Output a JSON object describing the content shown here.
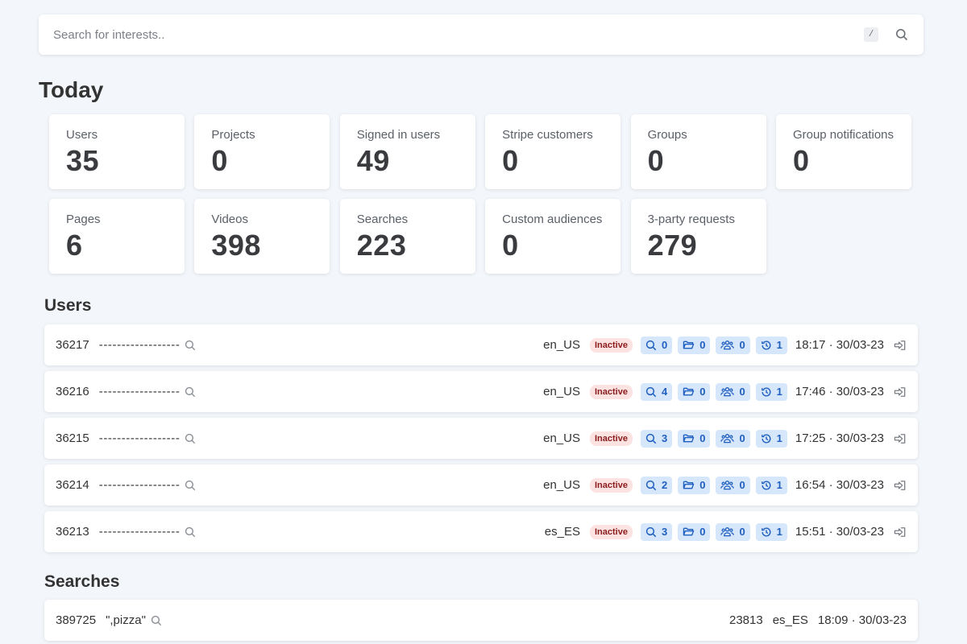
{
  "search": {
    "placeholder": "Search for interests..",
    "shortcut": "/"
  },
  "today": {
    "title": "Today",
    "stats": [
      {
        "label": "Users",
        "value": "35"
      },
      {
        "label": "Projects",
        "value": "0"
      },
      {
        "label": "Signed in users",
        "value": "49"
      },
      {
        "label": "Stripe customers",
        "value": "0"
      },
      {
        "label": "Groups",
        "value": "0"
      },
      {
        "label": "Group notifications",
        "value": "0"
      },
      {
        "label": "Pages",
        "value": "6"
      },
      {
        "label": "Videos",
        "value": "398"
      },
      {
        "label": "Searches",
        "value": "223"
      },
      {
        "label": "Custom audiences",
        "value": "0"
      },
      {
        "label": "3-party requests",
        "value": "279"
      }
    ]
  },
  "users": {
    "title": "Users",
    "rows": [
      {
        "id": "36217",
        "name": "------------------",
        "locale": "en_US",
        "status": "Inactive",
        "searches": "0",
        "projects": "0",
        "groups": "0",
        "history": "1",
        "time": "18:17 · 30/03-23"
      },
      {
        "id": "36216",
        "name": "------------------",
        "locale": "en_US",
        "status": "Inactive",
        "searches": "4",
        "projects": "0",
        "groups": "0",
        "history": "1",
        "time": "17:46 · 30/03-23"
      },
      {
        "id": "36215",
        "name": "------------------",
        "locale": "en_US",
        "status": "Inactive",
        "searches": "3",
        "projects": "0",
        "groups": "0",
        "history": "1",
        "time": "17:25 · 30/03-23"
      },
      {
        "id": "36214",
        "name": "------------------",
        "locale": "en_US",
        "status": "Inactive",
        "searches": "2",
        "projects": "0",
        "groups": "0",
        "history": "1",
        "time": "16:54 · 30/03-23"
      },
      {
        "id": "36213",
        "name": "------------------",
        "locale": "es_ES",
        "status": "Inactive",
        "searches": "3",
        "projects": "0",
        "groups": "0",
        "history": "1",
        "time": "15:51 · 30/03-23"
      }
    ]
  },
  "searches": {
    "title": "Searches",
    "rows": [
      {
        "id": "389725",
        "query": "\",pizza\"",
        "count": "23813",
        "locale": "es_ES",
        "time": "18:09 · 30/03-23"
      }
    ]
  },
  "colors": {
    "background": "#f3f6fa",
    "chip_bg": "#d6e6fb",
    "chip_text": "#1f5fbf",
    "inactive_bg": "#fde2e2",
    "inactive_text": "#8b1c1c"
  },
  "icons": {
    "search": "search-icon",
    "projects": "folder-icon",
    "groups": "users-icon",
    "history": "history-icon",
    "login": "login-icon"
  }
}
